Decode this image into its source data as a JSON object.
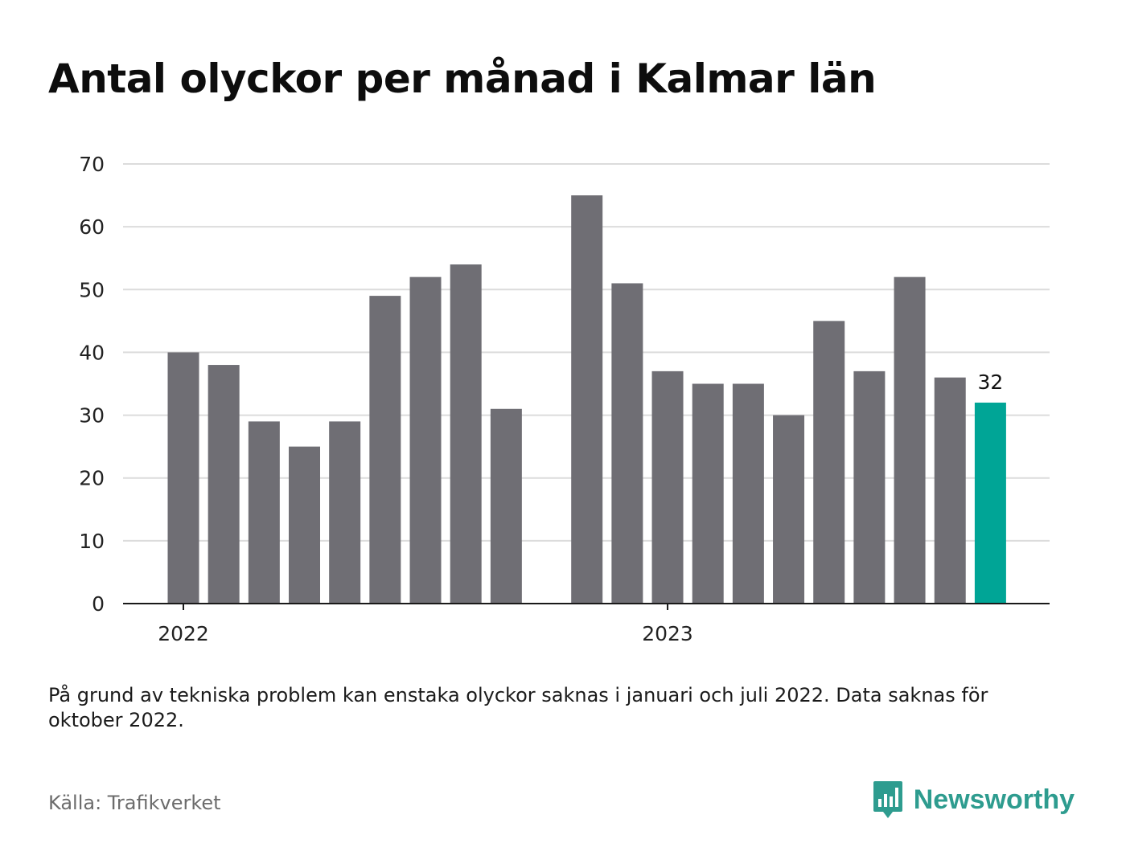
{
  "chart_data": {
    "type": "bar",
    "title": "Antal olyckor per månad i Kalmar län",
    "categories": [
      "2022-01",
      "2022-02",
      "2022-03",
      "2022-04",
      "2022-05",
      "2022-06",
      "2022-07",
      "2022-08",
      "2022-09",
      "2022-10",
      "2022-11",
      "2022-12",
      "2023-01",
      "2023-02",
      "2023-03",
      "2023-04",
      "2023-05",
      "2023-06",
      "2023-07",
      "2023-08",
      "2023-09"
    ],
    "values": [
      40,
      38,
      29,
      25,
      29,
      49,
      52,
      54,
      31,
      null,
      65,
      51,
      37,
      35,
      35,
      30,
      45,
      37,
      52,
      36,
      32
    ],
    "highlight_index": 20,
    "highlight_label": "32",
    "x_tick_labels": [
      {
        "category": "2022-01",
        "label": "2022"
      },
      {
        "category": "2023-01",
        "label": "2023"
      }
    ],
    "y_ticks": [
      0,
      10,
      20,
      30,
      40,
      50,
      60,
      70
    ],
    "ylim": [
      0,
      70
    ],
    "xlabel": "",
    "ylabel": "",
    "grid": true,
    "colors": {
      "bar": "#6f6e74",
      "highlight": "#00a596",
      "grid": "#dcdcdc",
      "axis": "#1a1a1a"
    }
  },
  "note": "På grund av tekniska problem kan enstaka olyckor saknas i januari och juli 2022. Data saknas för oktober 2022.",
  "source": "Källa: Trafikverket",
  "brand": {
    "name": "Newsworthy",
    "icon": "newsworthy-logo-icon",
    "color": "#2e9c8f"
  }
}
